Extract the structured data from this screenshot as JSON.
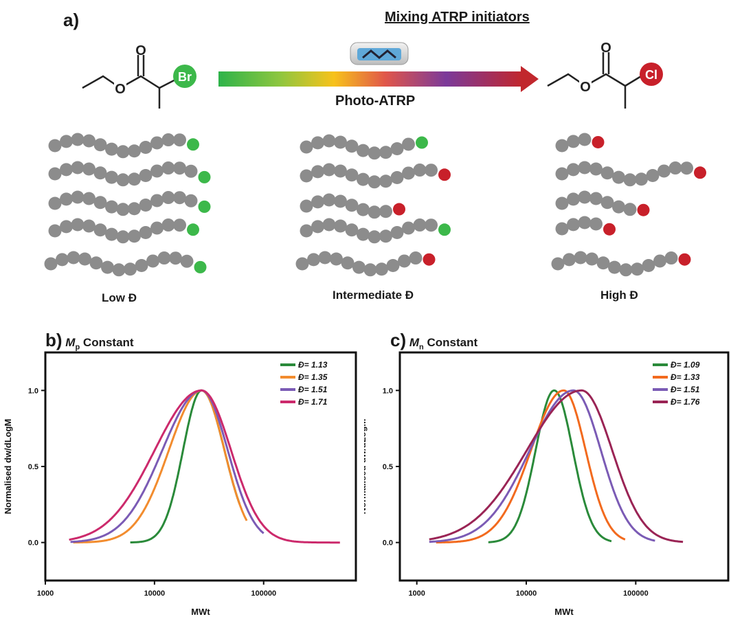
{
  "panel_a": {
    "letter": "a)",
    "title": "Mixing ATRP initiators",
    "arrow_label": "Photo-ATRP",
    "left_atom": "Br",
    "right_atom": "Cl",
    "captions": [
      "Low Đ",
      "Intermediate Đ",
      "High Đ"
    ],
    "colors": {
      "green": "#3cb84a",
      "red": "#c8202a",
      "bead": "#8c8c8c"
    }
  },
  "chart_data": [
    {
      "type": "line",
      "letter": "b)",
      "title_sym": "M",
      "title_sub": "p",
      "title_rest": " Constant",
      "xlabel": "MWt",
      "ylabel": "Normalised dw/dLogM",
      "xscale": "log",
      "xlim": [
        1000,
        700000
      ],
      "ylim": [
        -0.25,
        1.25
      ],
      "xticks": [
        "1000",
        "10000",
        "100000"
      ],
      "yticks": [
        "0.0",
        "0.5",
        "1.0"
      ],
      "legend_position": "top-right",
      "series": [
        {
          "name": "Đ= 1.13",
          "color": "#2a8a3a",
          "peak": 27000,
          "x_start": 6000,
          "x_end": 60000,
          "lw_left": 0.17,
          "lw_right": 0.21
        },
        {
          "name": "Đ= 1.35",
          "color": "#f28c2e",
          "peak": 27000,
          "x_start": 1800,
          "x_end": 70000,
          "lw_left": 0.3,
          "lw_right": 0.21
        },
        {
          "name": "Đ= 1.51",
          "color": "#7b5bb5",
          "peak": 27000,
          "x_start": 1700,
          "x_end": 100000,
          "lw_left": 0.36,
          "lw_right": 0.24
        },
        {
          "name": "Đ= 1.71",
          "color": "#cc2a6c",
          "peak": 27000,
          "x_start": 1650,
          "x_end": 500000,
          "lw_left": 0.43,
          "lw_right": 0.27
        }
      ]
    },
    {
      "type": "line",
      "letter": "c)",
      "title_sym": "M",
      "title_sub": "n",
      "title_rest": " Constant",
      "xlabel": "MWt",
      "ylabel": "Normalised dw/dLogM",
      "xscale": "log",
      "xlim": [
        700,
        700000
      ],
      "ylim": [
        -0.25,
        1.25
      ],
      "xticks": [
        "1000",
        "10000",
        "100000"
      ],
      "yticks": [
        "0.0",
        "0.5",
        "1.0"
      ],
      "legend_position": "top-right",
      "series": [
        {
          "name": "Đ= 1.09",
          "color": "#2a8a3a",
          "peak": 18000,
          "x_start": 4500,
          "x_end": 60000,
          "lw_left": 0.17,
          "lw_right": 0.17
        },
        {
          "name": "Đ= 1.33",
          "color": "#f26a1e",
          "peak": 22000,
          "x_start": 1500,
          "x_end": 80000,
          "lw_left": 0.3,
          "lw_right": 0.2
        },
        {
          "name": "Đ= 1.51",
          "color": "#7b5bb5",
          "peak": 27000,
          "x_start": 1300,
          "x_end": 150000,
          "lw_left": 0.4,
          "lw_right": 0.25
        },
        {
          "name": "Đ= 1.76",
          "color": "#9a2455",
          "peak": 32000,
          "x_start": 1300,
          "x_end": 270000,
          "lw_left": 0.5,
          "lw_right": 0.28
        }
      ]
    }
  ]
}
